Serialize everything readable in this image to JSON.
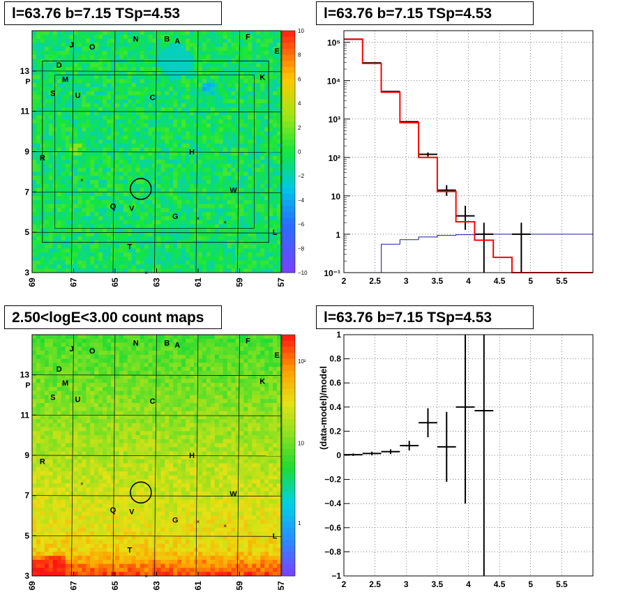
{
  "titles": {
    "top_left": "l=63.76 b=7.15 TSp=4.53",
    "top_right": "l=63.76 b=7.15 TSp=4.53",
    "bottom_left": "2.50<logE<3.00 count maps",
    "bottom_right": "l=63.76 b=7.15 TSp=4.53"
  },
  "chart_data": [
    {
      "id": "residual-ts-map",
      "type": "heatmap",
      "title": "l=63.76 b=7.15 TSp=4.53",
      "xlim": [
        69,
        57
      ],
      "ylim": [
        3,
        15
      ],
      "xticks": [
        "69",
        "67",
        "65",
        "63",
        "61",
        "59",
        "57"
      ],
      "yticks": [
        "3",
        "5",
        "7",
        "9",
        "11",
        "13"
      ],
      "colorbar": {
        "min": -10,
        "max": 10,
        "ticks": [
          "10",
          "8",
          "6",
          "4",
          "2",
          "0",
          "−2",
          "−4",
          "−6",
          "−8",
          "−10"
        ]
      },
      "sources": [
        {
          "label": "J",
          "l": 67.1,
          "b": 14.3
        },
        {
          "label": "O",
          "l": 66.1,
          "b": 14.2
        },
        {
          "label": "N",
          "l": 64.0,
          "b": 14.6
        },
        {
          "label": "B",
          "l": 62.5,
          "b": 14.6
        },
        {
          "label": "A",
          "l": 62.0,
          "b": 14.5
        },
        {
          "label": "F",
          "l": 58.6,
          "b": 14.7
        },
        {
          "label": "E",
          "l": 57.2,
          "b": 14.0
        },
        {
          "label": "D",
          "l": 67.7,
          "b": 13.3
        },
        {
          "label": "M",
          "l": 67.4,
          "b": 12.6
        },
        {
          "label": "K",
          "l": 57.9,
          "b": 12.7
        },
        {
          "label": "P",
          "l": 69.2,
          "b": 12.5
        },
        {
          "label": "S",
          "l": 68.0,
          "b": 11.9
        },
        {
          "label": "U",
          "l": 66.8,
          "b": 11.8
        },
        {
          "label": "C",
          "l": 63.2,
          "b": 11.7
        },
        {
          "label": "R",
          "l": 68.5,
          "b": 8.7
        },
        {
          "label": "H",
          "l": 61.3,
          "b": 9.0
        },
        {
          "label": "W",
          "l": 59.3,
          "b": 7.1
        },
        {
          "label": "Q",
          "l": 65.1,
          "b": 6.3
        },
        {
          "label": "V",
          "l": 64.2,
          "b": 6.2
        },
        {
          "label": "G",
          "l": 62.1,
          "b": 5.8
        },
        {
          "label": "L",
          "l": 57.3,
          "b": 5.0
        },
        {
          "label": "T",
          "l": 64.3,
          "b": 4.3
        }
      ],
      "crosses": [
        [
          66.6,
          7.6
        ],
        [
          61.0,
          5.7
        ],
        [
          59.7,
          5.5
        ],
        [
          63.5,
          3.0
        ]
      ],
      "circle": {
        "l": 63.76,
        "b": 7.15
      }
    },
    {
      "id": "spectrum",
      "type": "line",
      "title": "l=63.76 b=7.15 TSp=4.53",
      "log_y": true,
      "xlim": [
        2.0,
        6.0
      ],
      "ylim": [
        0.1,
        200000
      ],
      "xticks": [
        "2",
        "2.5",
        "3",
        "3.5",
        "4",
        "4.5",
        "5",
        "5.5"
      ],
      "yticks": [
        "10⁻¹",
        "1",
        "10",
        "10²",
        "10³",
        "10⁴",
        "10⁵"
      ],
      "grid": true,
      "model_bins": {
        "edges": [
          2.0,
          2.3,
          2.6,
          2.9,
          3.2,
          3.5,
          3.8,
          4.1,
          4.4,
          4.7,
          5.0,
          6.0
        ],
        "values": [
          120000,
          28000,
          5000,
          800,
          100,
          13,
          2.1,
          0.7,
          0.25,
          0.1,
          0.1
        ]
      },
      "background_bins": {
        "edges": [
          2.6,
          2.9,
          3.2,
          3.5,
          3.8,
          4.1,
          4.4,
          4.7,
          5.0,
          6.0
        ],
        "values": [
          0.55,
          0.72,
          0.85,
          0.93,
          0.97,
          0.99,
          1.0,
          1.0,
          1.0
        ]
      },
      "data_points": [
        {
          "x": 2.15,
          "xerr": 0.15,
          "y": 120000,
          "ylo": 119600,
          "yhi": 120400
        },
        {
          "x": 2.45,
          "xerr": 0.15,
          "y": 29000,
          "ylo": 28700,
          "yhi": 29300
        },
        {
          "x": 2.75,
          "xerr": 0.15,
          "y": 5200,
          "ylo": 5100,
          "yhi": 5300
        },
        {
          "x": 3.05,
          "xerr": 0.15,
          "y": 850,
          "ylo": 820,
          "yhi": 880
        },
        {
          "x": 3.35,
          "xerr": 0.15,
          "y": 120,
          "ylo": 105,
          "yhi": 135
        },
        {
          "x": 3.65,
          "xerr": 0.15,
          "y": 14,
          "ylo": 10,
          "yhi": 19
        },
        {
          "x": 3.95,
          "xerr": 0.15,
          "y": 3,
          "ylo": 1.3,
          "yhi": 5.5
        },
        {
          "x": 4.25,
          "xerr": 0.15,
          "y": 1.0,
          "ylo": 0.1,
          "yhi": 2.0
        },
        {
          "x": 4.85,
          "xerr": 0.15,
          "y": 1.0,
          "ylo": 0.1,
          "yhi": 2.0
        }
      ]
    },
    {
      "id": "count-map",
      "type": "heatmap",
      "title": "2.50<logE<3.00 count maps",
      "xlim": [
        69,
        57
      ],
      "ylim": [
        3,
        15
      ],
      "xticks": [
        "69",
        "67",
        "65",
        "63",
        "61",
        "59",
        "57"
      ],
      "yticks": [
        "3",
        "5",
        "7",
        "9",
        "11",
        "13"
      ],
      "colorbar": {
        "log": true,
        "ticks": [
          "10²",
          "10",
          "1"
        ]
      }
    },
    {
      "id": "residual-fraction",
      "type": "scatter",
      "title": "l=63.76 b=7.15 TSp=4.53",
      "xlim": [
        2.0,
        6.0
      ],
      "ylim": [
        -1,
        1
      ],
      "ylabel": "(data-model)/model",
      "xticks": [
        "2",
        "2.5",
        "3",
        "3.5",
        "4",
        "4.5",
        "5",
        "5.5"
      ],
      "yticks": [
        "1",
        "0.8",
        "0.6",
        "0.4",
        "0.2",
        "0",
        "−0.2",
        "−0.4",
        "−0.6",
        "−0.8",
        "−1"
      ],
      "grid": true,
      "points": [
        {
          "x": 2.15,
          "xerr": 0.15,
          "y": 0.005,
          "yerr": 0.01
        },
        {
          "x": 2.45,
          "xerr": 0.15,
          "y": 0.015,
          "yerr": 0.015
        },
        {
          "x": 2.75,
          "xerr": 0.15,
          "y": 0.03,
          "yerr": 0.02
        },
        {
          "x": 3.05,
          "xerr": 0.15,
          "y": 0.08,
          "yerr": 0.04
        },
        {
          "x": 3.35,
          "xerr": 0.15,
          "y": 0.27,
          "yerr": 0.12
        },
        {
          "x": 3.65,
          "xerr": 0.15,
          "y": 0.07,
          "yerr": 0.29
        },
        {
          "x": 3.95,
          "xerr": 0.15,
          "y": 0.4,
          "yerr": 0.8
        },
        {
          "x": 4.25,
          "xerr": 0.15,
          "y": 0.37,
          "yerr": 1.5
        }
      ]
    }
  ]
}
